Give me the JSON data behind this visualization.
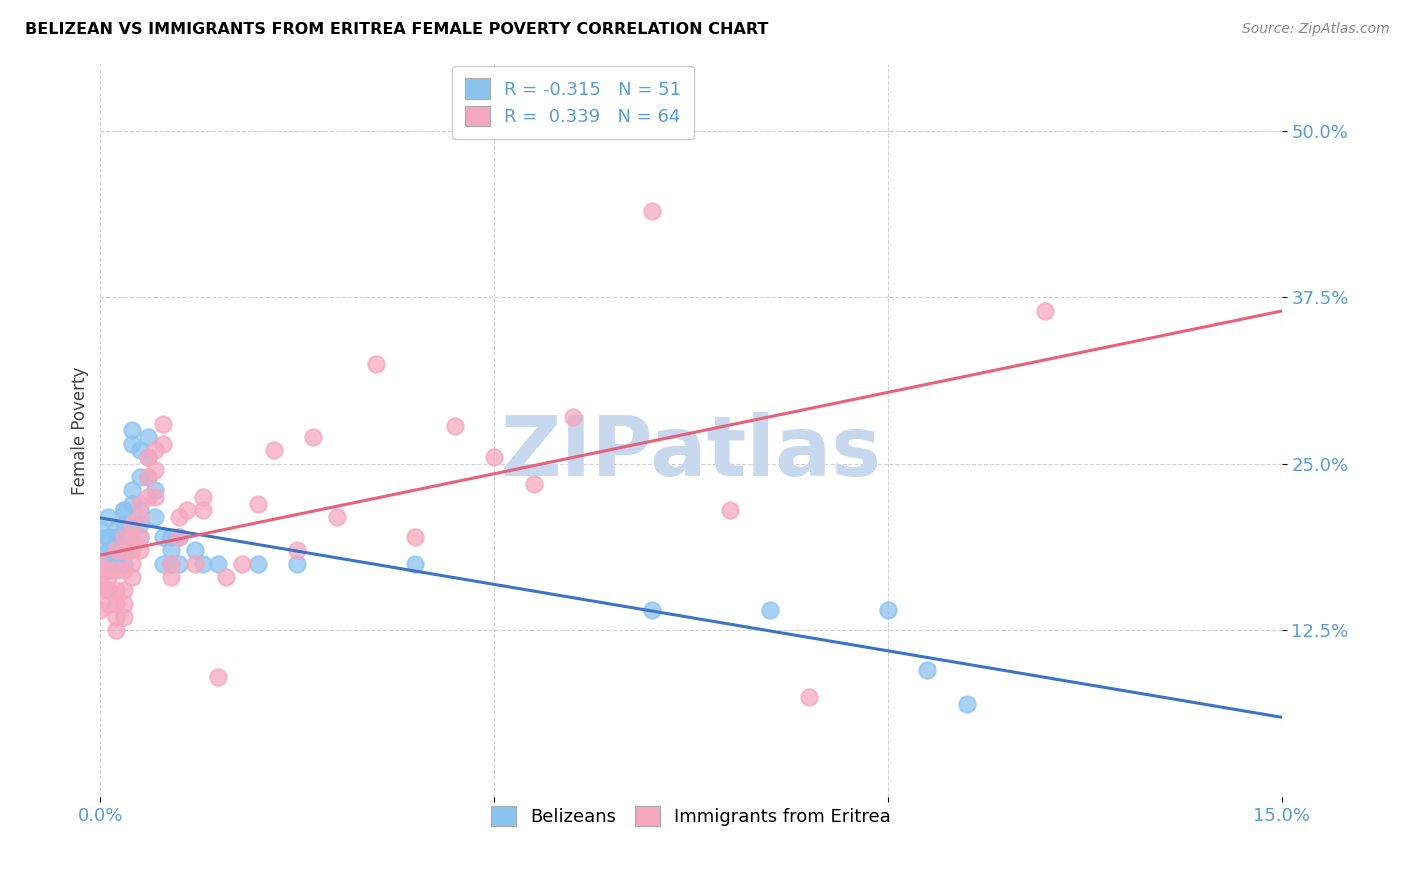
{
  "title": "BELIZEAN VS IMMIGRANTS FROM ERITREA FEMALE POVERTY CORRELATION CHART",
  "source": "Source: ZipAtlas.com",
  "ylabel": "Female Poverty",
  "xlim": [
    0.0,
    0.15
  ],
  "ylim": [
    0.0,
    0.55
  ],
  "xtick_positions": [
    0.0,
    0.05,
    0.1,
    0.15
  ],
  "xticklabels": [
    "0.0%",
    "",
    "",
    "15.0%"
  ],
  "ytick_positions": [
    0.125,
    0.25,
    0.375,
    0.5
  ],
  "ytick_labels": [
    "12.5%",
    "25.0%",
    "37.5%",
    "50.0%"
  ],
  "legend_labels": [
    "Belizeans",
    "Immigrants from Eritrea"
  ],
  "R_belizean": -0.315,
  "N_belizean": 51,
  "R_eritrea": 0.339,
  "N_eritrea": 64,
  "color_belizean": "#8CC4F0",
  "color_eritrea": "#F5A8C0",
  "line_color_belizean": "#3A74C9",
  "line_color_eritrea": "#E8607A",
  "watermark": "ZIPatlas",
  "watermark_color": "#C8D8EE",
  "belizean_x": [
    0.0,
    0.0,
    0.001,
    0.001,
    0.001,
    0.001,
    0.001,
    0.002,
    0.002,
    0.002,
    0.002,
    0.002,
    0.003,
    0.003,
    0.003,
    0.003,
    0.003,
    0.003,
    0.003,
    0.004,
    0.004,
    0.004,
    0.004,
    0.005,
    0.005,
    0.005,
    0.005,
    0.005,
    0.006,
    0.006,
    0.006,
    0.007,
    0.007,
    0.008,
    0.008,
    0.009,
    0.009,
    0.009,
    0.01,
    0.01,
    0.012,
    0.013,
    0.015,
    0.02,
    0.025,
    0.04,
    0.07,
    0.085,
    0.1,
    0.105,
    0.11
  ],
  "belizean_y": [
    0.185,
    0.2,
    0.195,
    0.21,
    0.185,
    0.175,
    0.195,
    0.2,
    0.185,
    0.175,
    0.195,
    0.185,
    0.215,
    0.205,
    0.195,
    0.185,
    0.175,
    0.215,
    0.185,
    0.23,
    0.22,
    0.265,
    0.275,
    0.24,
    0.26,
    0.215,
    0.205,
    0.195,
    0.255,
    0.24,
    0.27,
    0.23,
    0.21,
    0.195,
    0.175,
    0.195,
    0.185,
    0.175,
    0.195,
    0.175,
    0.185,
    0.175,
    0.175,
    0.175,
    0.175,
    0.175,
    0.14,
    0.14,
    0.14,
    0.095,
    0.07
  ],
  "eritrea_x": [
    0.0,
    0.0,
    0.0,
    0.0,
    0.001,
    0.001,
    0.001,
    0.001,
    0.001,
    0.002,
    0.002,
    0.002,
    0.002,
    0.002,
    0.002,
    0.003,
    0.003,
    0.003,
    0.003,
    0.003,
    0.003,
    0.004,
    0.004,
    0.004,
    0.004,
    0.004,
    0.005,
    0.005,
    0.005,
    0.005,
    0.006,
    0.006,
    0.006,
    0.007,
    0.007,
    0.007,
    0.008,
    0.008,
    0.009,
    0.009,
    0.01,
    0.01,
    0.011,
    0.012,
    0.013,
    0.013,
    0.015,
    0.016,
    0.018,
    0.02,
    0.022,
    0.025,
    0.027,
    0.03,
    0.035,
    0.04,
    0.045,
    0.05,
    0.055,
    0.06,
    0.07,
    0.08,
    0.09,
    0.12
  ],
  "eritrea_y": [
    0.14,
    0.155,
    0.165,
    0.175,
    0.17,
    0.155,
    0.145,
    0.165,
    0.155,
    0.185,
    0.17,
    0.155,
    0.145,
    0.135,
    0.125,
    0.195,
    0.185,
    0.17,
    0.155,
    0.145,
    0.135,
    0.205,
    0.195,
    0.185,
    0.175,
    0.165,
    0.22,
    0.21,
    0.195,
    0.185,
    0.255,
    0.24,
    0.225,
    0.26,
    0.245,
    0.225,
    0.28,
    0.265,
    0.175,
    0.165,
    0.21,
    0.195,
    0.215,
    0.175,
    0.225,
    0.215,
    0.09,
    0.165,
    0.175,
    0.22,
    0.26,
    0.185,
    0.27,
    0.21,
    0.325,
    0.195,
    0.278,
    0.255,
    0.235,
    0.285,
    0.44,
    0.215,
    0.075,
    0.365
  ]
}
